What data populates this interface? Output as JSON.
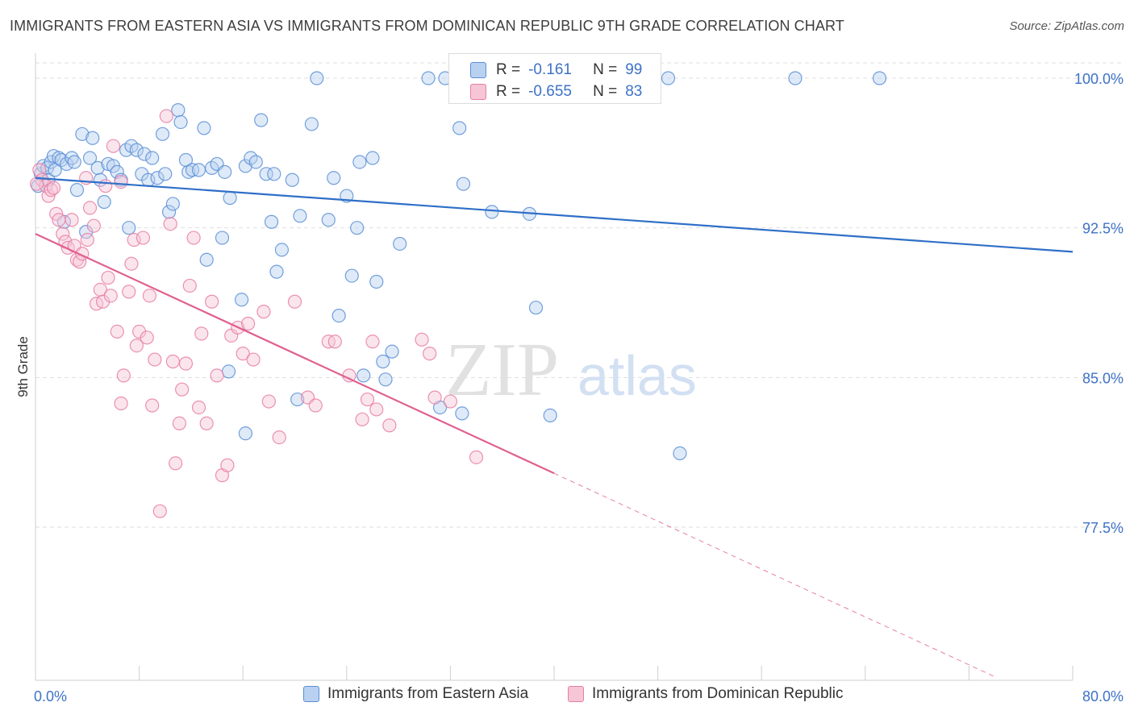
{
  "title": "IMMIGRANTS FROM EASTERN ASIA VS IMMIGRANTS FROM DOMINICAN REPUBLIC 9TH GRADE CORRELATION CHART",
  "source": "Source: ZipAtlas.com",
  "watermark": {
    "zip": "ZIP",
    "atlas": "atlas"
  },
  "colors": {
    "blue": "#5b8fd6",
    "blue_fill": "#b9d1f0",
    "blue_line": "#2f6fc7",
    "pink": "#e77ea3",
    "pink_fill": "#f6c6d6",
    "pink_line": "#e0608f",
    "axis_text": "#3d72c6",
    "grid": "#dedede"
  },
  "stats_legend": [
    {
      "r_label": "R =",
      "r_value": "-0.161",
      "n_label": "N =",
      "n_value": "99"
    },
    {
      "r_label": "R =",
      "r_value": "-0.655",
      "n_label": "N =",
      "n_value": "83"
    }
  ],
  "chart_data": {
    "type": "scatter",
    "title": "IMMIGRANTS FROM EASTERN ASIA VS IMMIGRANTS FROM DOMINICAN REPUBLIC 9TH GRADE CORRELATION CHART",
    "xlabel": "",
    "ylabel": "9th Grade",
    "xlim": [
      0,
      80
    ],
    "ylim": [
      70,
      101.5
    ],
    "x_tick_labels": [
      "0.0%",
      "80.0%"
    ],
    "y_ticks": [
      77.5,
      85.0,
      92.5,
      100.0
    ],
    "y_tick_labels": [
      "77.5%",
      "85.0%",
      "92.5%",
      "100.0%"
    ],
    "grid": true,
    "legend_position": "bottom",
    "series": [
      {
        "name": "Immigrants from Eastern Asia",
        "color": "#5b8fd6",
        "trend": {
          "x": [
            0,
            80
          ],
          "y": [
            95.0,
            91.3
          ]
        },
        "points": [
          [
            0.2,
            94.6
          ],
          [
            0.4,
            95.2
          ],
          [
            0.6,
            95.6
          ],
          [
            0.9,
            95.5
          ],
          [
            1.0,
            94.9
          ],
          [
            1.2,
            95.8
          ],
          [
            1.4,
            96.1
          ],
          [
            1.5,
            95.4
          ],
          [
            1.8,
            96.0
          ],
          [
            2.0,
            95.9
          ],
          [
            2.2,
            92.8
          ],
          [
            2.4,
            95.7
          ],
          [
            2.8,
            96.0
          ],
          [
            3.0,
            95.8
          ],
          [
            3.2,
            94.4
          ],
          [
            3.6,
            97.2
          ],
          [
            3.9,
            92.3
          ],
          [
            4.2,
            96.0
          ],
          [
            4.4,
            97.0
          ],
          [
            4.8,
            95.5
          ],
          [
            5.0,
            94.9
          ],
          [
            5.3,
            93.8
          ],
          [
            5.6,
            95.7
          ],
          [
            6.0,
            95.6
          ],
          [
            6.3,
            95.3
          ],
          [
            6.6,
            94.9
          ],
          [
            7.0,
            96.4
          ],
          [
            7.2,
            92.5
          ],
          [
            7.4,
            96.6
          ],
          [
            7.8,
            96.4
          ],
          [
            8.2,
            95.2
          ],
          [
            8.4,
            96.2
          ],
          [
            8.7,
            94.9
          ],
          [
            9.0,
            96.0
          ],
          [
            9.4,
            95.0
          ],
          [
            9.8,
            97.2
          ],
          [
            10.0,
            95.2
          ],
          [
            10.3,
            93.3
          ],
          [
            10.6,
            93.7
          ],
          [
            11.0,
            98.4
          ],
          [
            11.2,
            97.8
          ],
          [
            11.6,
            95.9
          ],
          [
            11.8,
            95.3
          ],
          [
            12.1,
            95.4
          ],
          [
            12.6,
            95.4
          ],
          [
            13.0,
            97.5
          ],
          [
            13.2,
            90.9
          ],
          [
            13.6,
            95.5
          ],
          [
            14.0,
            95.7
          ],
          [
            14.4,
            92.0
          ],
          [
            14.6,
            95.3
          ],
          [
            14.9,
            85.3
          ],
          [
            15.0,
            94.0
          ],
          [
            15.9,
            88.9
          ],
          [
            16.2,
            95.6
          ],
          [
            16.6,
            96.0
          ],
          [
            17.0,
            95.8
          ],
          [
            17.4,
            97.9
          ],
          [
            17.8,
            95.2
          ],
          [
            18.2,
            92.8
          ],
          [
            18.4,
            95.2
          ],
          [
            18.6,
            90.3
          ],
          [
            19.0,
            91.4
          ],
          [
            19.8,
            94.9
          ],
          [
            20.2,
            83.9
          ],
          [
            20.4,
            93.1
          ],
          [
            21.3,
            97.7
          ],
          [
            21.7,
            100.0
          ],
          [
            22.6,
            92.9
          ],
          [
            23.0,
            95.0
          ],
          [
            23.4,
            88.1
          ],
          [
            24.0,
            94.1
          ],
          [
            24.4,
            90.1
          ],
          [
            24.8,
            92.5
          ],
          [
            25.0,
            95.8
          ],
          [
            25.3,
            85.1
          ],
          [
            26.0,
            96.0
          ],
          [
            26.3,
            89.8
          ],
          [
            26.8,
            85.8
          ],
          [
            27.0,
            84.9
          ],
          [
            27.5,
            86.3
          ],
          [
            28.1,
            91.7
          ],
          [
            30.3,
            100.0
          ],
          [
            31.2,
            83.5
          ],
          [
            31.6,
            100.0
          ],
          [
            32.7,
            97.5
          ],
          [
            32.9,
            83.2
          ],
          [
            33.0,
            94.7
          ],
          [
            35.2,
            93.3
          ],
          [
            35.6,
            100.0
          ],
          [
            37.0,
            100.0
          ],
          [
            38.1,
            93.2
          ],
          [
            38.6,
            88.5
          ],
          [
            39.7,
            83.1
          ],
          [
            48.8,
            100.0
          ],
          [
            49.7,
            81.2
          ],
          [
            58.6,
            100.0
          ],
          [
            65.1,
            100.0
          ],
          [
            16.2,
            82.2
          ]
        ]
      },
      {
        "name": "Immigrants from Dominican Republic",
        "color": "#e77ea3",
        "trend": {
          "x": [
            0,
            40
          ],
          "y": [
            92.2,
            80.2
          ]
        },
        "trend_dashed": {
          "x": [
            40,
            74
          ],
          "y": [
            80.2,
            70.0
          ]
        },
        "points": [
          [
            0.3,
            95.4
          ],
          [
            0.5,
            94.9
          ],
          [
            0.8,
            94.6
          ],
          [
            1.0,
            94.1
          ],
          [
            1.2,
            94.4
          ],
          [
            1.6,
            93.2
          ],
          [
            1.8,
            92.9
          ],
          [
            2.1,
            92.2
          ],
          [
            2.3,
            91.8
          ],
          [
            2.5,
            91.5
          ],
          [
            2.8,
            92.9
          ],
          [
            3.0,
            91.6
          ],
          [
            3.2,
            90.9
          ],
          [
            3.4,
            90.8
          ],
          [
            3.6,
            91.2
          ],
          [
            3.9,
            95.0
          ],
          [
            4.0,
            91.9
          ],
          [
            4.2,
            93.5
          ],
          [
            4.5,
            92.6
          ],
          [
            4.7,
            88.7
          ],
          [
            5.0,
            89.4
          ],
          [
            5.2,
            88.8
          ],
          [
            5.4,
            94.6
          ],
          [
            5.6,
            90.0
          ],
          [
            5.8,
            89.1
          ],
          [
            6.0,
            96.6
          ],
          [
            6.3,
            87.3
          ],
          [
            6.6,
            83.7
          ],
          [
            6.8,
            85.1
          ],
          [
            7.2,
            89.3
          ],
          [
            7.4,
            90.7
          ],
          [
            7.6,
            91.9
          ],
          [
            7.8,
            86.6
          ],
          [
            8.0,
            87.3
          ],
          [
            8.3,
            92.0
          ],
          [
            8.6,
            87.0
          ],
          [
            8.8,
            89.1
          ],
          [
            9.0,
            83.6
          ],
          [
            9.2,
            85.9
          ],
          [
            9.6,
            78.3
          ],
          [
            10.1,
            98.1
          ],
          [
            10.4,
            92.7
          ],
          [
            10.6,
            85.8
          ],
          [
            10.8,
            80.7
          ],
          [
            11.1,
            82.7
          ],
          [
            11.3,
            84.4
          ],
          [
            11.6,
            85.7
          ],
          [
            11.9,
            89.6
          ],
          [
            12.2,
            92.0
          ],
          [
            12.6,
            83.5
          ],
          [
            12.8,
            87.2
          ],
          [
            13.2,
            82.7
          ],
          [
            13.6,
            88.8
          ],
          [
            14.0,
            85.1
          ],
          [
            14.4,
            80.1
          ],
          [
            14.8,
            80.6
          ],
          [
            15.1,
            87.1
          ],
          [
            15.6,
            87.5
          ],
          [
            16.0,
            86.2
          ],
          [
            16.4,
            87.7
          ],
          [
            16.8,
            85.9
          ],
          [
            17.6,
            88.3
          ],
          [
            18.0,
            83.8
          ],
          [
            18.8,
            82.0
          ],
          [
            20.0,
            88.8
          ],
          [
            21.0,
            84.0
          ],
          [
            21.6,
            83.6
          ],
          [
            22.6,
            86.8
          ],
          [
            23.1,
            86.8
          ],
          [
            24.2,
            85.1
          ],
          [
            25.2,
            82.9
          ],
          [
            25.6,
            83.9
          ],
          [
            26.0,
            86.8
          ],
          [
            26.3,
            83.4
          ],
          [
            27.3,
            82.6
          ],
          [
            29.8,
            86.9
          ],
          [
            30.4,
            86.2
          ],
          [
            30.8,
            84.0
          ],
          [
            32.0,
            83.8
          ],
          [
            34.0,
            81.0
          ],
          [
            0.1,
            94.7
          ],
          [
            1.4,
            94.5
          ],
          [
            6.6,
            94.8
          ]
        ]
      }
    ]
  },
  "bottom_legend": [
    {
      "label": "Immigrants from Eastern Asia"
    },
    {
      "label": "Immigrants from Dominican Republic"
    }
  ]
}
